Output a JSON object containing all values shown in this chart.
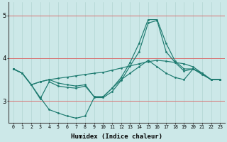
{
  "xlabel": "Humidex (Indice chaleur)",
  "bg_color": "#cce8e8",
  "line_color": "#1e7b70",
  "grid_h_color": "#d87070",
  "grid_v_color": "#aad0cc",
  "xlim": [
    -0.5,
    23.5
  ],
  "ylim": [
    2.5,
    5.3
  ],
  "yticks": [
    3,
    4,
    5
  ],
  "xticks": [
    0,
    1,
    2,
    3,
    4,
    5,
    6,
    7,
    8,
    9,
    10,
    11,
    12,
    13,
    14,
    15,
    16,
    17,
    18,
    19,
    20,
    21,
    22,
    23
  ],
  "series": [
    {
      "x": [
        0,
        1,
        2,
        3,
        4,
        5,
        6,
        7,
        8,
        9,
        10,
        11,
        12,
        13,
        14,
        15,
        16,
        17,
        18,
        19,
        20,
        21,
        22,
        23
      ],
      "y": [
        3.75,
        3.65,
        3.38,
        3.05,
        3.45,
        3.35,
        3.32,
        3.3,
        3.35,
        3.1,
        3.1,
        3.3,
        3.55,
        3.9,
        4.35,
        4.9,
        4.9,
        4.35,
        3.93,
        3.75,
        3.75,
        3.62,
        3.5,
        3.5
      ]
    },
    {
      "x": [
        0,
        1,
        2,
        3,
        4,
        5,
        6,
        7,
        8,
        9,
        10,
        11,
        12,
        13,
        14,
        15,
        16,
        17,
        18,
        19,
        20,
        21,
        22,
        23
      ],
      "y": [
        3.75,
        3.65,
        3.38,
        3.45,
        3.5,
        3.53,
        3.56,
        3.59,
        3.62,
        3.65,
        3.67,
        3.72,
        3.77,
        3.82,
        3.87,
        3.92,
        3.95,
        3.93,
        3.9,
        3.87,
        3.8,
        3.65,
        3.5,
        3.5
      ]
    },
    {
      "x": [
        0,
        1,
        2,
        3,
        4,
        5,
        6,
        7,
        8,
        9,
        10,
        11,
        12,
        13,
        14,
        15,
        16,
        17,
        18,
        19,
        20,
        21,
        22,
        23
      ],
      "y": [
        3.75,
        3.65,
        3.38,
        3.45,
        3.5,
        3.42,
        3.38,
        3.35,
        3.38,
        3.1,
        3.1,
        3.3,
        3.5,
        3.65,
        3.8,
        3.95,
        3.8,
        3.65,
        3.55,
        3.5,
        3.75,
        3.65,
        3.5,
        3.5
      ]
    },
    {
      "x": [
        0,
        1,
        2,
        3,
        4,
        5,
        6,
        7,
        8,
        9,
        10,
        11,
        12,
        13,
        14,
        15,
        16,
        17,
        18,
        19,
        20,
        21,
        22,
        23
      ],
      "y": [
        3.75,
        3.65,
        3.38,
        3.08,
        2.8,
        2.72,
        2.65,
        2.6,
        2.65,
        3.08,
        3.08,
        3.22,
        3.48,
        3.82,
        4.15,
        4.82,
        4.88,
        4.15,
        3.9,
        3.7,
        3.75,
        3.65,
        3.5,
        3.5
      ]
    }
  ]
}
